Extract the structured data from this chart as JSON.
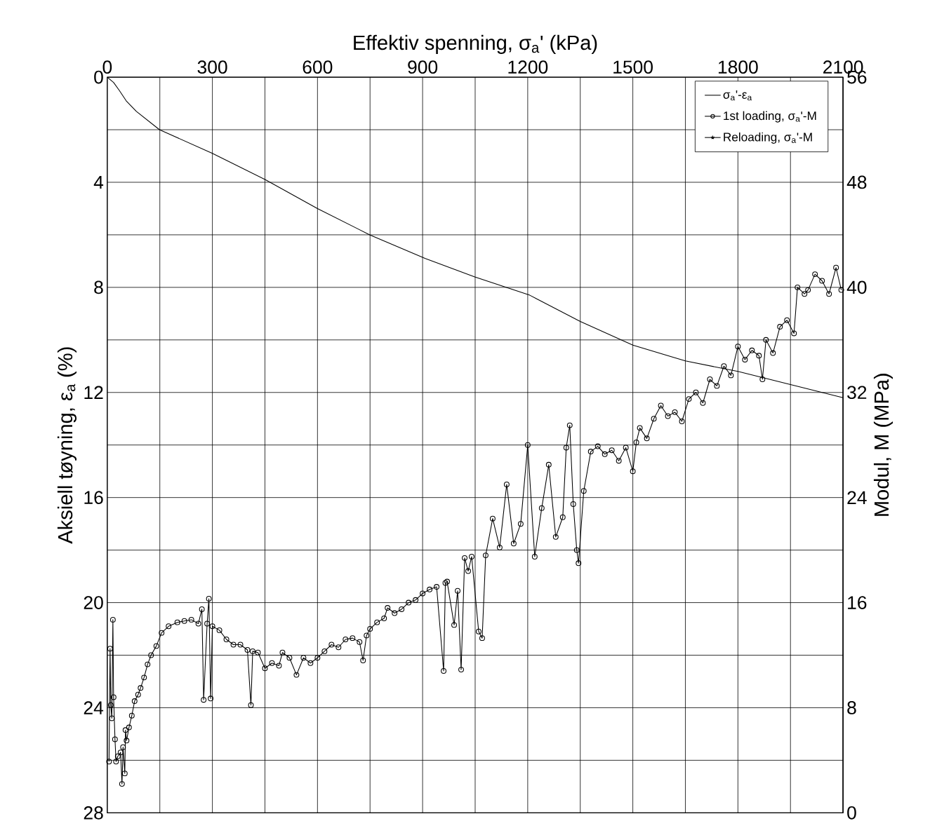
{
  "chart_data": {
    "type": "line",
    "xlabel": "Effektiv spenning, σ$_{a}$'  (kPa)",
    "ylabel": "Aksiell tøyning, ε$_{a}$  (%)",
    "y2label": "Modul, M  (MPa)",
    "xlim": [
      0,
      2100
    ],
    "xticks": [
      0,
      {
        "value": 150,
        "label": null
      },
      300,
      {
        "value": 450,
        "label": null
      },
      600,
      {
        "value": 750,
        "label": null
      },
      900,
      {
        "value": 1050,
        "label": null
      },
      1200,
      {
        "value": 1350,
        "label": null
      },
      1500,
      {
        "value": 1650,
        "label": null
      },
      1800,
      {
        "value": 1950,
        "label": null
      },
      2100
    ],
    "ylim": [
      28,
      0
    ],
    "yticks": [
      0,
      {
        "value": 2,
        "label": null
      },
      4,
      {
        "value": 6,
        "label": null
      },
      8,
      {
        "value": 10,
        "label": null
      },
      12,
      {
        "value": 14,
        "label": null
      },
      16,
      {
        "value": 18,
        "label": null
      },
      20,
      {
        "value": 22,
        "label": null
      },
      24,
      {
        "value": 26,
        "label": null
      },
      28
    ],
    "y2lim": [
      0,
      56
    ],
    "y2ticks": [
      0,
      8,
      16,
      24,
      32,
      40,
      48,
      56
    ],
    "grid": true,
    "legend": "top right",
    "series": [
      {
        "name": "σ$_{a}$'-ε$_{a}$",
        "color": "#000000",
        "marker": "none",
        "x": [
          0,
          18,
          34,
          54,
          83,
          149,
          300,
          451,
          600,
          749,
          908,
          1049,
          1206,
          1350,
          1500,
          1650,
          1800,
          1950,
          2100
        ],
        "values": [
          0,
          0.2,
          0.5,
          0.9,
          1.3,
          2.0,
          2.9,
          3.9,
          5.0,
          6.0,
          6.9,
          7.6,
          8.3,
          9.3,
          10.2,
          10.8,
          11.2,
          11.7,
          12.2
        ]
      },
      {
        "name": "1st loading, σ$_{a}$'-M",
        "color": "#000000",
        "marker": "circle",
        "axis": "y2",
        "x": [
          5,
          8,
          10,
          13,
          16,
          18,
          22,
          25,
          30,
          38,
          42,
          45,
          50,
          52,
          55,
          62,
          70,
          78,
          88,
          95,
          105,
          115,
          125,
          140,
          155,
          175,
          200,
          220,
          240,
          260,
          270,
          275,
          285,
          290,
          295,
          300,
          320,
          340,
          360,
          380,
          400,
          410,
          415,
          430,
          450,
          470,
          490,
          500,
          520,
          540,
          560,
          580,
          600,
          620,
          640,
          660,
          680,
          700,
          720,
          730,
          740,
          750,
          770,
          790,
          800,
          820,
          840,
          860,
          880,
          900,
          920,
          940,
          960,
          965,
          970,
          990,
          1000,
          1010,
          1020,
          1030,
          1040,
          1060,
          1070,
          1080,
          1100,
          1120,
          1140,
          1160,
          1180,
          1200,
          1220,
          1240,
          1260,
          1280,
          1300,
          1310,
          1320,
          1330,
          1340,
          1345,
          1360,
          1380,
          1400,
          1420,
          1440,
          1460,
          1480,
          1500,
          1510,
          1520,
          1540,
          1560,
          1580,
          1600,
          1620,
          1640,
          1660,
          1680,
          1700,
          1720,
          1740,
          1760,
          1780,
          1800,
          1820,
          1840,
          1860,
          1870,
          1880,
          1900,
          1920,
          1940,
          1960,
          1970,
          1990,
          2000,
          2020,
          2040,
          2060,
          2080,
          2095
        ],
        "values": [
          3.9,
          12.5,
          8.2,
          7.2,
          14.7,
          8.8,
          5.6,
          3.9,
          4.3,
          4.6,
          2.2,
          5.0,
          3.0,
          6.3,
          5.5,
          6.5,
          7.4,
          8.5,
          9.0,
          9.5,
          10.3,
          11.3,
          12.0,
          12.7,
          13.7,
          14.2,
          14.5,
          14.6,
          14.7,
          14.4,
          15.5,
          8.6,
          14.4,
          16.3,
          8.7,
          14.2,
          13.9,
          13.2,
          12.8,
          12.8,
          12.4,
          8.2,
          12.3,
          12.2,
          11.0,
          11.4,
          11.2,
          12.2,
          11.8,
          10.5,
          11.8,
          11.4,
          11.8,
          12.3,
          12.8,
          12.6,
          13.2,
          13.3,
          13.0,
          11.6,
          13.5,
          14.0,
          14.5,
          14.8,
          15.6,
          15.2,
          15.5,
          16.0,
          16.2,
          16.7,
          17.0,
          17.2,
          10.8,
          17.5,
          17.6,
          14.3,
          16.9,
          10.9,
          19.4,
          18.4,
          19.5,
          13.8,
          13.3,
          19.6,
          22.4,
          20.2,
          25.0,
          20.5,
          22.0,
          28.0,
          19.5,
          23.2,
          26.5,
          21.0,
          22.5,
          27.8,
          29.5,
          23.5,
          20.0,
          19.0,
          24.5,
          27.5,
          27.9,
          27.3,
          27.6,
          26.8,
          27.8,
          26.0,
          28.2,
          29.3,
          28.5,
          30.0,
          31.0,
          30.2,
          30.5,
          29.8,
          31.5,
          32.0,
          31.2,
          33.0,
          32.5,
          34.0,
          33.3,
          35.5,
          34.5,
          35.2,
          34.8,
          33.0,
          36.0,
          35.0,
          37.0,
          37.5,
          36.5,
          40.0,
          39.5,
          39.8,
          41.0,
          40.5,
          39.5,
          41.5,
          39.8
        ]
      },
      {
        "name": "Reloading, σ$_{a}$'-M",
        "color": "#000000",
        "marker": "star",
        "axis": "y2"
      }
    ]
  }
}
